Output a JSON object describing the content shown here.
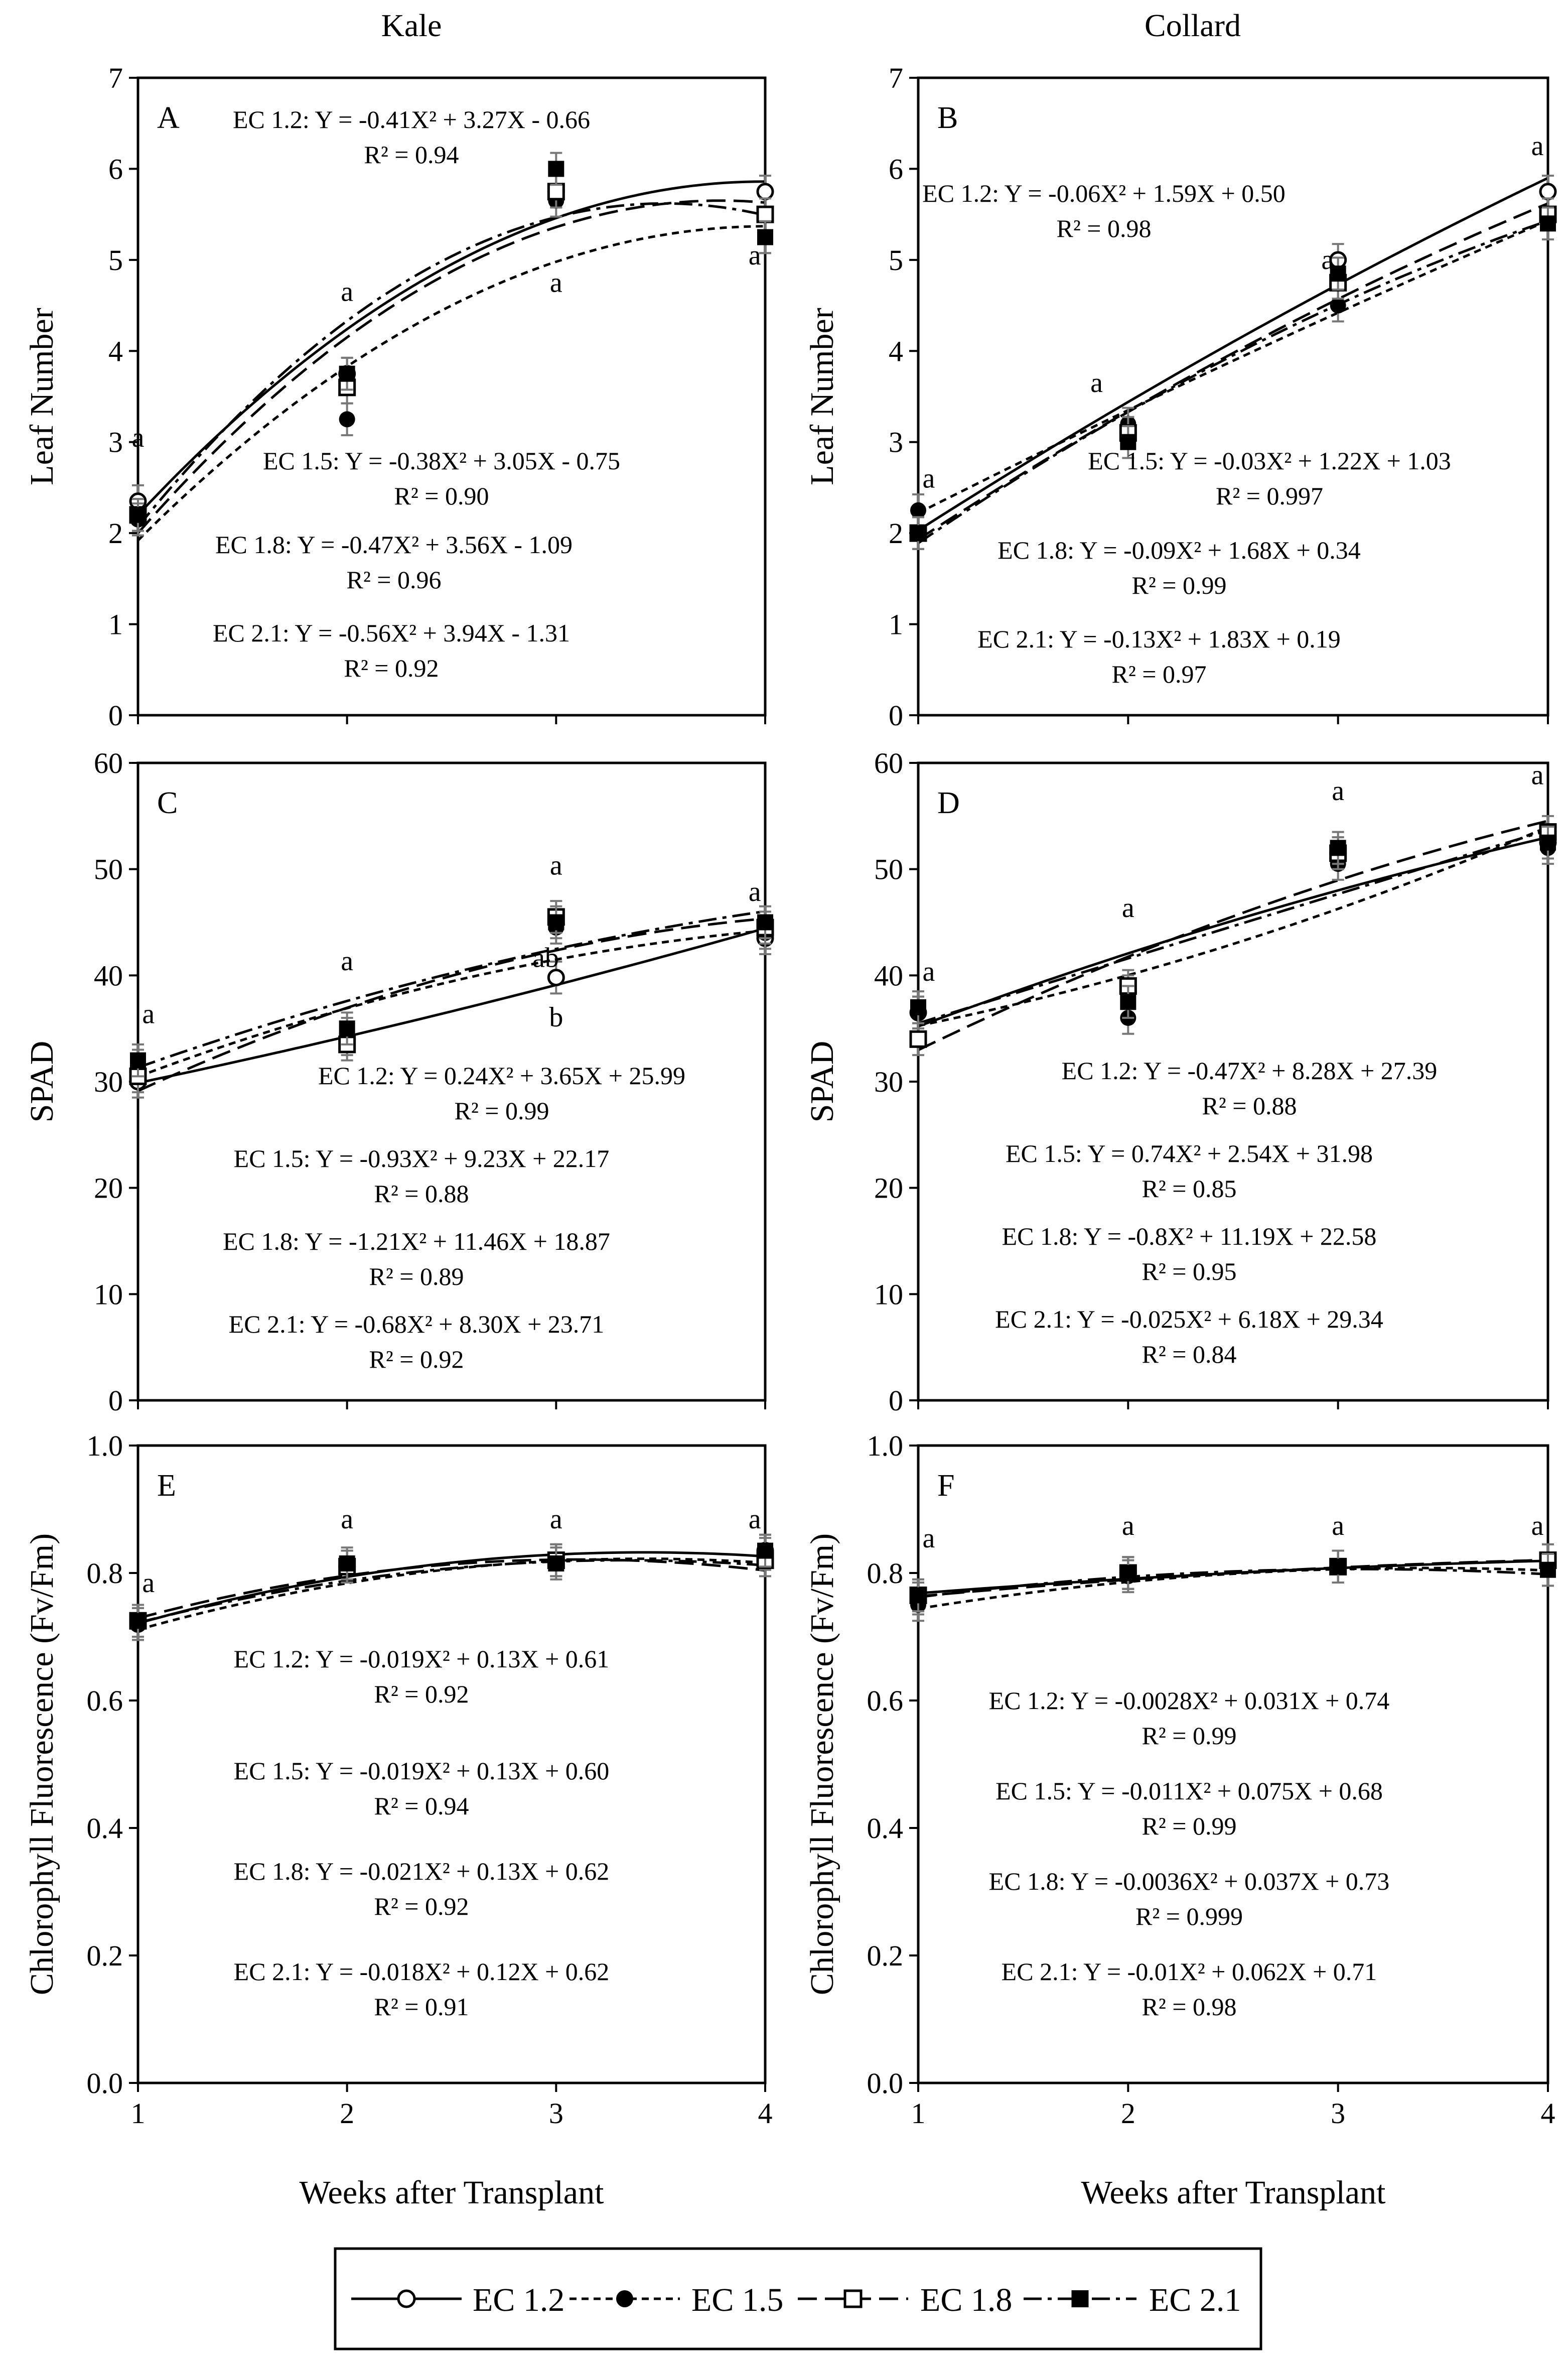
{
  "columns": [
    {
      "title": "Kale"
    },
    {
      "title": "Collard"
    }
  ],
  "x_axis": {
    "title": "Weeks after Transplant",
    "ticks": [
      "1",
      "2",
      "3",
      "4"
    ]
  },
  "legend": [
    {
      "label": "EC 1.2",
      "marker": "open-circle",
      "dash": "solid"
    },
    {
      "label": "EC 1.5",
      "marker": "filled-circle",
      "dash": "short"
    },
    {
      "label": "EC 1.8",
      "marker": "open-square",
      "dash": "long"
    },
    {
      "label": "EC 2.1",
      "marker": "filled-square",
      "dash": "dashdot"
    }
  ],
  "chart_data": [
    {
      "panel": "A",
      "crop": "Kale",
      "type": "line",
      "ylabel": "Leaf Number",
      "xlabel": "Weeks after Transplant",
      "ylim": [
        0,
        7
      ],
      "yticks": [
        "0",
        "1",
        "2",
        "3",
        "4",
        "5",
        "6",
        "7"
      ],
      "x": [
        1,
        2,
        3,
        4
      ],
      "series": [
        {
          "name": "EC 1.2",
          "values": [
            2.35,
            3.75,
            5.75,
            5.75
          ],
          "coef": [
            -0.41,
            3.27,
            -0.66
          ],
          "equation": "EC 1.2: Y = -0.41X² + 3.27X - 0.66",
          "r2": "R² = 0.94"
        },
        {
          "name": "EC 1.5",
          "values": [
            2.15,
            3.25,
            5.65,
            5.25
          ],
          "coef": [
            -0.38,
            3.05,
            -0.75
          ],
          "equation": "EC 1.5: Y = -0.38X² + 3.05X - 0.75",
          "r2": "R² = 0.90"
        },
        {
          "name": "EC 1.8",
          "values": [
            2.2,
            3.6,
            5.75,
            5.5
          ],
          "coef": [
            -0.47,
            3.56,
            -1.09
          ],
          "equation": "EC 1.8: Y = -0.47X² + 3.56X - 1.09",
          "r2": "R² = 0.96"
        },
        {
          "name": "EC 2.1",
          "values": [
            2.2,
            3.75,
            6.0,
            5.25
          ],
          "coef": [
            -0.56,
            3.94,
            -1.31
          ],
          "equation": "EC 2.1: Y = -0.56X² + 3.94X - 1.31",
          "r2": "R² = 0.92"
        }
      ],
      "letters": [
        {
          "x": 1,
          "y": 2.95,
          "text": "a"
        },
        {
          "x": 2,
          "y": 4.55,
          "text": "a"
        },
        {
          "x": 3,
          "y": 4.65,
          "text": "a"
        },
        {
          "x": 3.95,
          "y": 4.95,
          "text": "a"
        }
      ]
    },
    {
      "panel": "B",
      "crop": "Collard",
      "type": "line",
      "ylabel": "Leaf Number",
      "xlabel": "Weeks after Transplant",
      "ylim": [
        0,
        7
      ],
      "yticks": [
        "0",
        "1",
        "2",
        "3",
        "4",
        "5",
        "6",
        "7"
      ],
      "x": [
        1,
        2,
        3,
        4
      ],
      "series": [
        {
          "name": "EC 1.2",
          "values": [
            2.0,
            3.1,
            5.0,
            5.75
          ],
          "coef": [
            -0.06,
            1.59,
            0.5
          ],
          "equation": "EC 1.2: Y = -0.06X² + 1.59X + 0.50",
          "r2": "R² = 0.98"
        },
        {
          "name": "EC 1.5",
          "values": [
            2.25,
            3.2,
            4.5,
            5.5
          ],
          "coef": [
            -0.03,
            1.22,
            1.03
          ],
          "equation": "EC 1.5: Y = -0.03X² + 1.22X + 1.03",
          "r2": "R² = 0.997"
        },
        {
          "name": "EC 1.8",
          "values": [
            2.0,
            3.1,
            4.75,
            5.5
          ],
          "coef": [
            -0.09,
            1.68,
            0.34
          ],
          "equation": "EC 1.8: Y = -0.09X² + 1.68X + 0.34",
          "r2": "R² = 0.99"
        },
        {
          "name": "EC 2.1",
          "values": [
            2.0,
            3.0,
            4.85,
            5.4
          ],
          "coef": [
            -0.13,
            1.83,
            0.19
          ],
          "equation": "EC 2.1: Y = -0.13X² + 1.83X + 0.19",
          "r2": "R² = 0.97"
        }
      ],
      "letters": [
        {
          "x": 1.05,
          "y": 2.5,
          "text": "a"
        },
        {
          "x": 1.85,
          "y": 3.55,
          "text": "a"
        },
        {
          "x": 2.95,
          "y": 4.9,
          "text": "a"
        },
        {
          "x": 3.95,
          "y": 6.15,
          "text": "a"
        }
      ]
    },
    {
      "panel": "C",
      "crop": "Kale",
      "type": "line",
      "ylabel": "SPAD",
      "xlabel": "Weeks after Transplant",
      "ylim": [
        0,
        60
      ],
      "yticks": [
        "0",
        "10",
        "20",
        "30",
        "40",
        "50",
        "60"
      ],
      "x": [
        1,
        2,
        3,
        4
      ],
      "series": [
        {
          "name": "EC 1.2",
          "values": [
            30.0,
            34.0,
            39.8,
            43.5
          ],
          "coef": [
            0.24,
            3.65,
            25.99
          ],
          "equation": "EC 1.2: Y = 0.24X² + 3.65X + 25.99",
          "r2": "R² = 0.99"
        },
        {
          "name": "EC 1.5",
          "values": [
            31.5,
            34.5,
            44.5,
            44.0
          ],
          "coef": [
            -0.93,
            9.23,
            22.17
          ],
          "equation": "EC 1.5: Y = -0.93X² + 9.23X + 22.17",
          "r2": "R² = 0.88"
        },
        {
          "name": "EC 1.8",
          "values": [
            30.5,
            33.5,
            45.5,
            44.5
          ],
          "coef": [
            -1.21,
            11.46,
            18.87
          ],
          "equation": "EC 1.8: Y = -1.21X² + 11.46X + 18.87",
          "r2": "R² = 0.89"
        },
        {
          "name": "EC 2.1",
          "values": [
            32.0,
            35.0,
            45.0,
            45.0
          ],
          "coef": [
            -0.68,
            8.3,
            23.71
          ],
          "equation": "EC 2.1: Y = -0.68X² + 8.30X + 23.71",
          "r2": "R² = 0.92"
        }
      ],
      "letters": [
        {
          "x": 1.05,
          "y": 35.5,
          "text": "a"
        },
        {
          "x": 2,
          "y": 40.5,
          "text": "a"
        },
        {
          "x": 3,
          "y": 49.5,
          "text": "a"
        },
        {
          "x": 2.95,
          "y": 40.8,
          "text": "ab"
        },
        {
          "x": 3,
          "y": 35.2,
          "text": "b"
        },
        {
          "x": 3.95,
          "y": 47.0,
          "text": "a"
        }
      ]
    },
    {
      "panel": "D",
      "crop": "Collard",
      "type": "line",
      "ylabel": "SPAD",
      "xlabel": "Weeks after Transplant",
      "ylim": [
        0,
        60
      ],
      "yticks": [
        "0",
        "10",
        "20",
        "30",
        "40",
        "50",
        "60"
      ],
      "x": [
        1,
        2,
        3,
        4
      ],
      "series": [
        {
          "name": "EC 1.2",
          "values": [
            36.5,
            38.5,
            51.5,
            52.5
          ],
          "coef": [
            -0.47,
            8.28,
            27.39
          ],
          "equation": "EC 1.2: Y = -0.47X² + 8.28X + 27.39",
          "r2": "R² = 0.88"
        },
        {
          "name": "EC 1.5",
          "values": [
            36.5,
            36.0,
            50.5,
            52.0
          ],
          "coef": [
            0.74,
            2.54,
            31.98
          ],
          "equation": "EC 1.5: Y = 0.74X² + 2.54X + 31.98",
          "r2": "R² = 0.85"
        },
        {
          "name": "EC 1.8",
          "values": [
            34.0,
            39.0,
            51.5,
            53.5
          ],
          "coef": [
            -0.8,
            11.19,
            22.58
          ],
          "equation": "EC 1.8: Y = -0.8X² + 11.19X + 22.58",
          "r2": "R² = 0.95"
        },
        {
          "name": "EC 2.1",
          "values": [
            37.0,
            37.5,
            52.0,
            52.5
          ],
          "coef": [
            -0.025,
            6.18,
            29.34
          ],
          "equation": "EC 2.1: Y = -0.025X² + 6.18X + 29.34",
          "r2": "R² = 0.84"
        }
      ],
      "letters": [
        {
          "x": 1.05,
          "y": 39.5,
          "text": "a"
        },
        {
          "x": 2,
          "y": 45.5,
          "text": "a"
        },
        {
          "x": 3,
          "y": 56.5,
          "text": "a"
        },
        {
          "x": 3.95,
          "y": 58.0,
          "text": "a"
        }
      ]
    },
    {
      "panel": "E",
      "crop": "Kale",
      "type": "line",
      "ylabel": "Chlorophyll Fluorescence (Fv/Fm)",
      "xlabel": "Weeks after Transplant",
      "ylim": [
        0,
        1
      ],
      "yticks": [
        "0.0",
        "0.2",
        "0.4",
        "0.6",
        "0.8",
        "1.0"
      ],
      "x": [
        1,
        2,
        3,
        4
      ],
      "series": [
        {
          "name": "EC 1.2",
          "values": [
            0.72,
            0.81,
            0.82,
            0.835
          ],
          "coef": [
            -0.019,
            0.13,
            0.61
          ],
          "equation": "EC 1.2: Y = -0.019X² + 0.13X + 0.61",
          "r2": "R² = 0.92"
        },
        {
          "name": "EC 1.5",
          "values": [
            0.72,
            0.81,
            0.82,
            0.83
          ],
          "coef": [
            -0.019,
            0.13,
            0.6
          ],
          "equation": "EC 1.5: Y = -0.019X² + 0.13X + 0.60",
          "r2": "R² = 0.94"
        },
        {
          "name": "EC 1.8",
          "values": [
            0.725,
            0.81,
            0.82,
            0.82
          ],
          "coef": [
            -0.021,
            0.13,
            0.62
          ],
          "equation": "EC 1.8: Y = -0.021X² + 0.13X + 0.62",
          "r2": "R² = 0.92"
        },
        {
          "name": "EC 2.1",
          "values": [
            0.725,
            0.815,
            0.815,
            0.835
          ],
          "coef": [
            -0.018,
            0.12,
            0.62
          ],
          "equation": "EC 2.1: Y = -0.018X² + 0.12X + 0.62",
          "r2": "R² = 0.91"
        }
      ],
      "letters": [
        {
          "x": 1.05,
          "y": 0.77,
          "text": "a"
        },
        {
          "x": 2,
          "y": 0.87,
          "text": "a"
        },
        {
          "x": 3,
          "y": 0.87,
          "text": "a"
        },
        {
          "x": 3.95,
          "y": 0.87,
          "text": "a"
        }
      ]
    },
    {
      "panel": "F",
      "crop": "Collard",
      "type": "line",
      "ylabel": "Chlorophyll Fluorescence (Fv/Fm)",
      "xlabel": "Weeks after Transplant",
      "ylim": [
        0,
        1
      ],
      "yticks": [
        "0.0",
        "0.2",
        "0.4",
        "0.6",
        "0.8",
        "1.0"
      ],
      "x": [
        1,
        2,
        3,
        4
      ],
      "series": [
        {
          "name": "EC 1.2",
          "values": [
            0.76,
            0.8,
            0.81,
            0.82
          ],
          "coef": [
            -0.0028,
            0.031,
            0.74
          ],
          "equation": "EC 1.2: Y = -0.0028X² + 0.031X + 0.74",
          "r2": "R² = 0.99"
        },
        {
          "name": "EC 1.5",
          "values": [
            0.75,
            0.795,
            0.81,
            0.805
          ],
          "coef": [
            -0.011,
            0.075,
            0.68
          ],
          "equation": "EC 1.5: Y = -0.011X² + 0.075X + 0.68",
          "r2": "R² = 0.99"
        },
        {
          "name": "EC 1.8",
          "values": [
            0.765,
            0.8,
            0.81,
            0.82
          ],
          "coef": [
            -0.0036,
            0.037,
            0.73
          ],
          "equation": "EC 1.8: Y = -0.0036X² + 0.037X + 0.73",
          "r2": "R² = 0.999"
        },
        {
          "name": "EC 2.1",
          "values": [
            0.765,
            0.8,
            0.81,
            0.805
          ],
          "coef": [
            -0.01,
            0.062,
            0.71
          ],
          "equation": "EC 2.1: Y = -0.01X² + 0.062X + 0.71",
          "r2": "R² = 0.98"
        }
      ],
      "letters": [
        {
          "x": 1.05,
          "y": 0.84,
          "text": "a"
        },
        {
          "x": 2,
          "y": 0.86,
          "text": "a"
        },
        {
          "x": 3,
          "y": 0.86,
          "text": "a"
        },
        {
          "x": 3.95,
          "y": 0.86,
          "text": "a"
        }
      ]
    }
  ]
}
